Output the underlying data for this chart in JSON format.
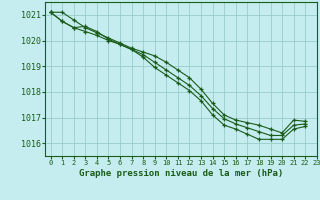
{
  "title": "Graphe pression niveau de la mer (hPa)",
  "background_color": "#c5ecee",
  "grid_color": "#99cccc",
  "line_color": "#1a5c1a",
  "marker_color": "#1a5c1a",
  "xlim": [
    -0.5,
    23
  ],
  "ylim": [
    1015.5,
    1021.5
  ],
  "yticks": [
    1016,
    1017,
    1018,
    1019,
    1020,
    1021
  ],
  "xticks": [
    0,
    1,
    2,
    3,
    4,
    5,
    6,
    7,
    8,
    9,
    10,
    11,
    12,
    13,
    14,
    15,
    16,
    17,
    18,
    19,
    20,
    21,
    22,
    23
  ],
  "series": [
    [
      1021.1,
      1021.1,
      1020.8,
      1020.5,
      1020.3,
      1020.1,
      1019.9,
      1019.7,
      1019.55,
      1019.4,
      1019.15,
      1018.85,
      1018.55,
      1018.1,
      1017.55,
      1017.1,
      1016.9,
      1016.8,
      1016.7,
      1016.55,
      1016.4,
      1016.9,
      1016.85,
      null
    ],
    [
      1021.1,
      1020.75,
      1020.5,
      1020.55,
      1020.35,
      1020.05,
      1019.85,
      1019.65,
      1019.45,
      1019.15,
      1018.85,
      1018.55,
      1018.25,
      1017.85,
      1017.35,
      1016.95,
      1016.75,
      1016.6,
      1016.45,
      1016.3,
      1016.3,
      1016.7,
      1016.75,
      null
    ],
    [
      1021.1,
      1020.75,
      1020.5,
      1020.35,
      1020.2,
      1020.0,
      1019.85,
      1019.65,
      1019.35,
      1018.95,
      1018.65,
      1018.35,
      1018.05,
      1017.65,
      1017.1,
      1016.7,
      1016.55,
      1016.35,
      1016.15,
      1016.15,
      1016.15,
      1016.55,
      1016.65,
      null
    ]
  ]
}
